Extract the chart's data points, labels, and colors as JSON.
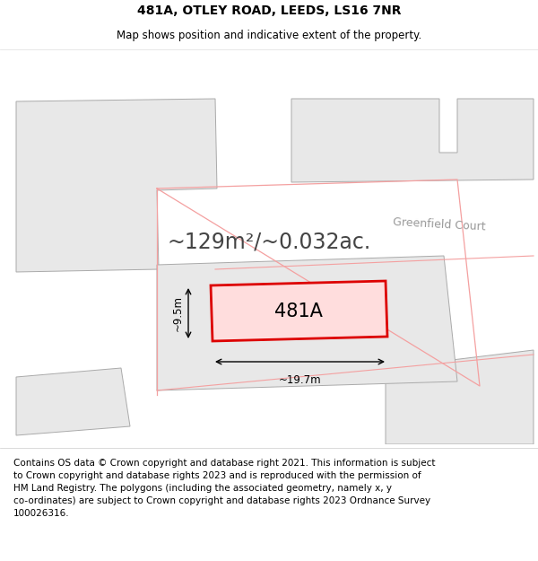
{
  "title_line1": "481A, OTLEY ROAD, LEEDS, LS16 7NR",
  "title_line2": "Map shows position and indicative extent of the property.",
  "area_text": "~129m²/~0.032ac.",
  "label_481A": "481A",
  "width_label": "~19.7m",
  "height_label": "~9.5m",
  "street_label": "Greenfield Court",
  "footer_text": "Contains OS data © Crown copyright and database right 2021. This information is subject\nto Crown copyright and database rights 2023 and is reproduced with the permission of\nHM Land Registry. The polygons (including the associated geometry, namely x, y\nco-ordinates) are subject to Crown copyright and database rights 2023 Ordnance Survey\n100026316.",
  "white": "#ffffff",
  "light_gray": "#e8e8e8",
  "mid_gray": "#d0d0d0",
  "dark_gray_edge": "#aaaaaa",
  "red_fill": "#ffdddd",
  "red_edge": "#dd0000",
  "pink_line": "#f4a0a0",
  "dim_color": "#999999",
  "text_dark": "#333333",
  "title_fontsize": 10,
  "subtitle_fontsize": 8.5,
  "area_fontsize": 17,
  "label_fontsize": 15,
  "street_fontsize": 9,
  "dim_fontsize": 8.5,
  "footer_fontsize": 7.5
}
